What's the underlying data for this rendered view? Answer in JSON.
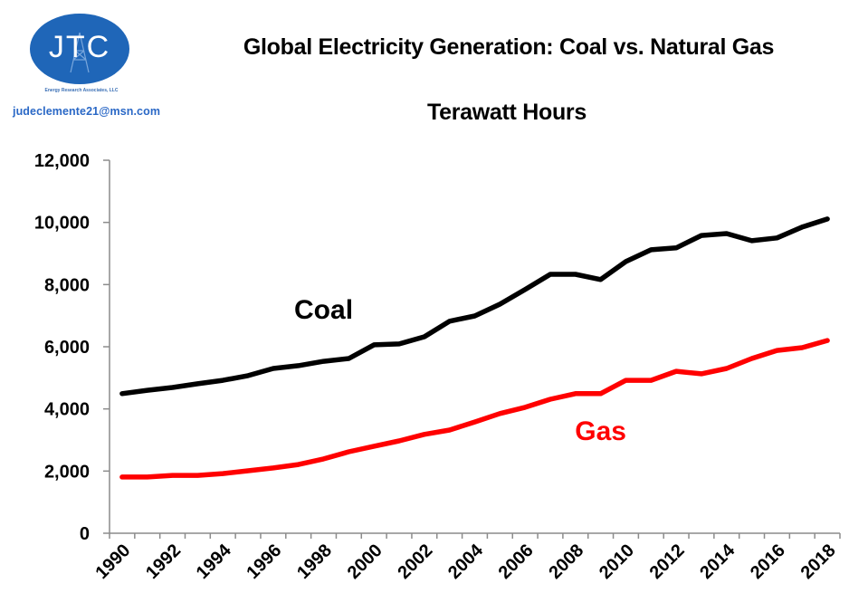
{
  "logo": {
    "initials": "JTC",
    "tagline": "Energy Research Associates, LLC",
    "email": "judeclemente21@msn.com",
    "color": "#1f66b8"
  },
  "chart_data": {
    "type": "line",
    "title": "Global Electricity Generation: Coal vs. Natural Gas",
    "subtitle": "Terawatt Hours",
    "xlabel": "",
    "ylabel": "",
    "x": [
      1990,
      1991,
      1992,
      1993,
      1994,
      1995,
      1996,
      1997,
      1998,
      1999,
      2000,
      2001,
      2002,
      2003,
      2004,
      2005,
      2006,
      2007,
      2008,
      2009,
      2010,
      2011,
      2012,
      2013,
      2014,
      2015,
      2016,
      2017,
      2018
    ],
    "x_tick_labels": [
      "1990",
      "1992",
      "1994",
      "1996",
      "1998",
      "2000",
      "2002",
      "2004",
      "2006",
      "2008",
      "2010",
      "2012",
      "2014",
      "2016",
      "2018"
    ],
    "ylim": [
      0,
      12000
    ],
    "y_ticks": [
      0,
      2000,
      4000,
      6000,
      8000,
      10000,
      12000
    ],
    "y_tick_labels": [
      "0",
      "2,000",
      "4,000",
      "6,000",
      "8,000",
      "10,000",
      "12,000"
    ],
    "grid": false,
    "legend": "inline-labels",
    "series": [
      {
        "name": "Coal",
        "color": "#000000",
        "values": [
          4490,
          4600,
          4690,
          4810,
          4920,
          5070,
          5300,
          5390,
          5530,
          5620,
          6060,
          6090,
          6320,
          6820,
          6990,
          7370,
          7840,
          8330,
          8330,
          8160,
          8740,
          9120,
          9180,
          9580,
          9640,
          9410,
          9500,
          9850,
          10110
        ]
      },
      {
        "name": "Gas",
        "color": "#ff0000",
        "values": [
          1810,
          1810,
          1860,
          1860,
          1920,
          2010,
          2100,
          2210,
          2390,
          2620,
          2800,
          2970,
          3180,
          3320,
          3580,
          3850,
          4050,
          4310,
          4490,
          4490,
          4920,
          4920,
          5210,
          5130,
          5300,
          5620,
          5880,
          5970,
          6200
        ]
      }
    ],
    "annotations": [
      {
        "text": "Coal",
        "series": "Coal",
        "near_x": 1998,
        "near_y": 6900
      },
      {
        "text": "Gas",
        "series": "Gas",
        "near_x": 2009,
        "near_y": 3000
      }
    ]
  }
}
